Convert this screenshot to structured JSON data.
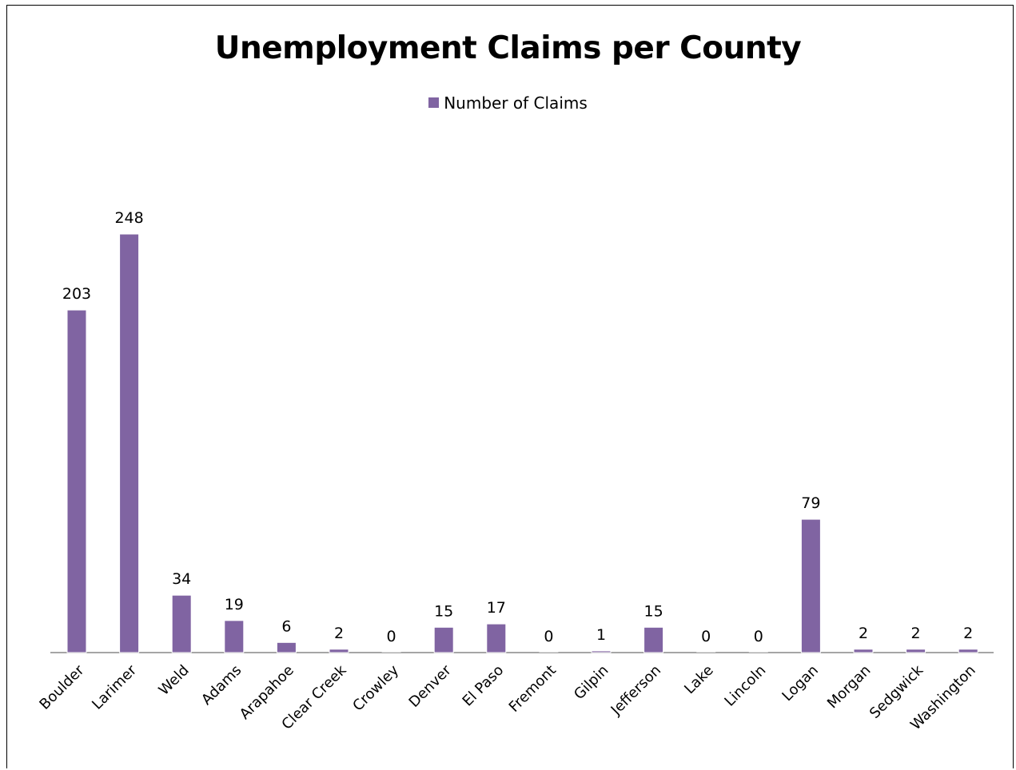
{
  "chart_data": {
    "type": "bar",
    "title": "Unemployment Claims per County",
    "categories": [
      "Boulder",
      "Larimer",
      "Weld",
      "Adams",
      "Arapahoe",
      "Clear Creek",
      "Crowley",
      "Denver",
      "El Paso",
      "Fremont",
      "Gilpin",
      "Jefferson",
      "Lake",
      "Lincoln",
      "Logan",
      "Morgan",
      "Sedgwick",
      "Washington"
    ],
    "series": [
      {
        "name": "Number of Claims",
        "values": [
          203,
          248,
          34,
          19,
          6,
          2,
          0,
          15,
          17,
          0,
          1,
          15,
          0,
          0,
          79,
          2,
          2,
          2
        ]
      }
    ],
    "ylim": [
      0,
      248
    ],
    "grid": false,
    "data_labels": true,
    "legend_placement": "top",
    "colors": {
      "bar": "#8064A2",
      "axis": "#888888"
    }
  }
}
